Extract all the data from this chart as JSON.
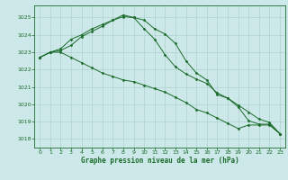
{
  "xlabel": "Graphe pression niveau de la mer (hPa)",
  "ylim": [
    1017.5,
    1025.7
  ],
  "xlim": [
    -0.5,
    23.5
  ],
  "yticks": [
    1018,
    1019,
    1020,
    1021,
    1022,
    1023,
    1024,
    1025
  ],
  "xticks": [
    0,
    1,
    2,
    3,
    4,
    5,
    6,
    7,
    8,
    9,
    10,
    11,
    12,
    13,
    14,
    15,
    16,
    17,
    18,
    19,
    20,
    21,
    22,
    23
  ],
  "bg_color": "#cde8e8",
  "grid_color": "#a8cccc",
  "line_color": "#1a6b2a",
  "series": [
    [
      1022.7,
      1023.0,
      1023.0,
      1022.7,
      1022.4,
      1022.1,
      1021.8,
      1021.6,
      1021.4,
      1021.3,
      1021.1,
      1020.9,
      1020.7,
      1020.4,
      1020.1,
      1019.7,
      1019.5,
      1019.2,
      1018.9,
      1018.6,
      1018.8,
      1018.8,
      1018.8,
      1018.3
    ],
    [
      1022.7,
      1023.0,
      1023.1,
      1023.4,
      1023.9,
      1024.2,
      1024.5,
      1024.85,
      1025.05,
      1025.0,
      1024.85,
      1024.35,
      1024.05,
      1023.5,
      1022.5,
      1021.8,
      1021.4,
      1020.55,
      1020.35,
      1019.85,
      1019.05,
      1018.85,
      1018.85,
      1018.3
    ],
    [
      1022.7,
      1023.0,
      1023.2,
      1023.75,
      1024.0,
      1024.35,
      1024.6,
      1024.85,
      1025.15,
      1025.0,
      1024.35,
      1023.75,
      1022.85,
      1022.15,
      1021.75,
      1021.45,
      1021.2,
      1020.65,
      1020.35,
      1019.95,
      1019.55,
      1019.15,
      1018.95,
      1018.3
    ]
  ]
}
